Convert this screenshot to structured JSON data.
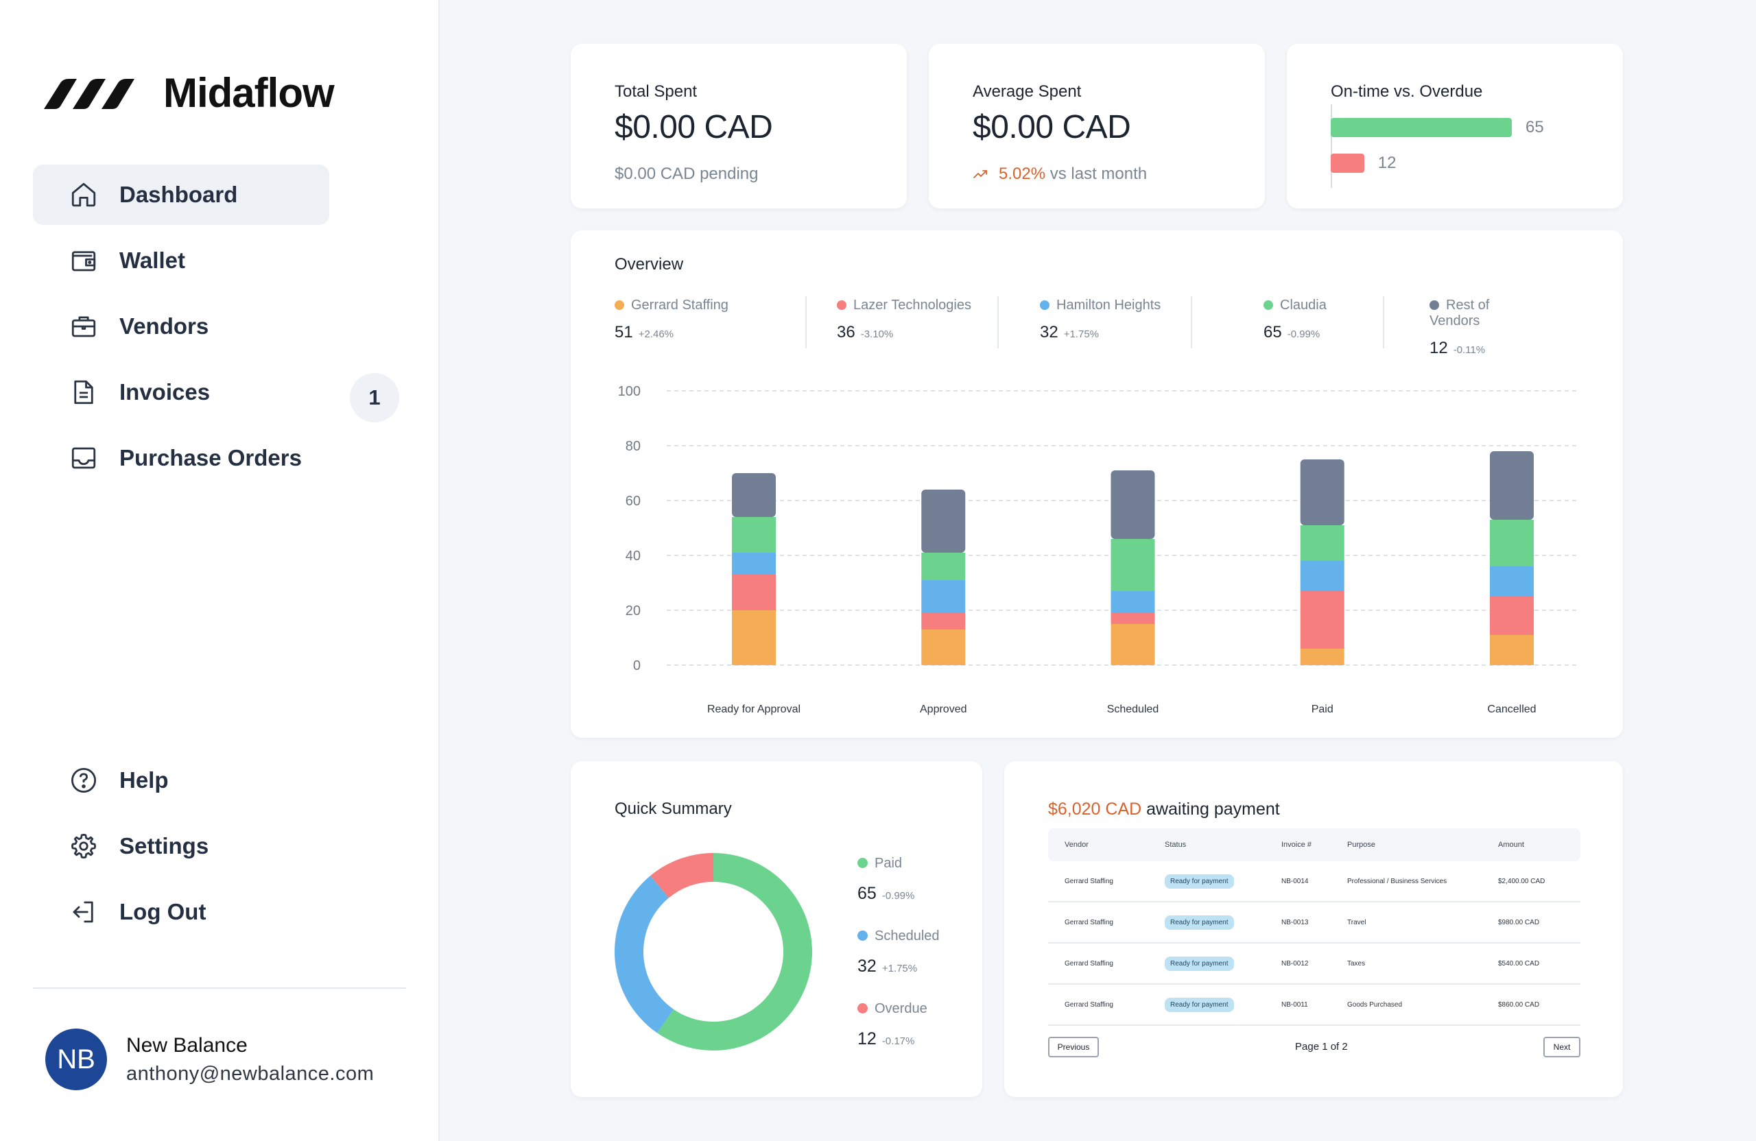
{
  "brand": {
    "name": "Midaflow"
  },
  "nav": {
    "items": [
      {
        "label": "Dashboard",
        "icon": "home-icon",
        "active": true
      },
      {
        "label": "Wallet",
        "icon": "wallet-icon"
      },
      {
        "label": "Vendors",
        "icon": "briefcase-icon"
      },
      {
        "label": "Invoices",
        "icon": "document-icon",
        "badge": "1"
      },
      {
        "label": "Purchase Orders",
        "icon": "inbox-icon"
      }
    ],
    "bottom": [
      {
        "label": "Help",
        "icon": "help-circle-icon"
      },
      {
        "label": "Settings",
        "icon": "gear-icon"
      },
      {
        "label": "Log Out",
        "icon": "logout-icon"
      }
    ]
  },
  "user": {
    "initials": "NB",
    "name": "New Balance",
    "email": "anthony@newbalance.com"
  },
  "stats": {
    "total_spent": {
      "title": "Total Spent",
      "value": "$0.00 CAD",
      "sub": "$0.00 CAD pending"
    },
    "average_spent": {
      "title": "Average Spent",
      "value": "$0.00 CAD",
      "change": "5.02%",
      "change_suffix": " vs last month"
    },
    "ontime": {
      "title": "On-time vs. Overdue",
      "ontime_value": 65,
      "overdue_value": 12,
      "ontime_label": "65",
      "overdue_label": "12"
    }
  },
  "overview": {
    "title": "Overview",
    "legend": [
      {
        "name": "Gerrard Staffing",
        "value": "51",
        "change": "+2.46%",
        "color": "#f5ad55"
      },
      {
        "name": "Lazer Technologies",
        "value": "36",
        "change": "-3.10%",
        "color": "#f77e7e"
      },
      {
        "name": "Hamilton Heights",
        "value": "32",
        "change": "+1.75%",
        "color": "#64b2ec"
      },
      {
        "name": "Claudia",
        "value": "65",
        "change": "-0.99%",
        "color": "#6bd38e"
      },
      {
        "name": "Rest of Vendors",
        "value": "12",
        "change": "-0.11%",
        "color": "#717e93"
      }
    ]
  },
  "chart_data": {
    "type": "bar",
    "stacked": true,
    "categories": [
      "Ready for Approval",
      "Approved",
      "Scheduled",
      "Paid",
      "Cancelled"
    ],
    "ylim": [
      0,
      100
    ],
    "yticks": [
      0,
      20,
      40,
      60,
      80,
      100
    ],
    "grid": true,
    "series": [
      {
        "name": "Gerrard Staffing",
        "color": "#f5ad55",
        "values": [
          20,
          13,
          15,
          6,
          11
        ]
      },
      {
        "name": "Lazer Technologies",
        "color": "#f77e7e",
        "values": [
          13,
          6,
          4,
          21,
          14
        ]
      },
      {
        "name": "Hamilton Heights",
        "color": "#64b2ec",
        "values": [
          8,
          12,
          8,
          11,
          11
        ]
      },
      {
        "name": "Claudia",
        "color": "#6bd38e",
        "values": [
          13,
          10,
          19,
          13,
          17
        ]
      },
      {
        "name": "Rest of Vendors",
        "color": "#717e93",
        "values": [
          16,
          23,
          25,
          24,
          25
        ]
      }
    ]
  },
  "summary": {
    "title": "Quick Summary",
    "donut": [
      {
        "name": "Paid",
        "value": 65,
        "label": "65",
        "change": "-0.99%",
        "color": "#6bd38e"
      },
      {
        "name": "Scheduled",
        "value": 32,
        "label": "32",
        "change": "+1.75%",
        "color": "#64b2ec"
      },
      {
        "name": "Overdue",
        "value": 12,
        "label": "12",
        "change": "-0.17%",
        "color": "#f77e7e"
      }
    ]
  },
  "awaiting": {
    "amount": "$6,020 CAD",
    "suffix": " awaiting payment",
    "columns": [
      "Vendor",
      "Status",
      "Invoice #",
      "Purpose",
      "Amount"
    ],
    "rows": [
      {
        "vendor": "Gerrard Staffing",
        "status": "Ready for payment",
        "invoice": "NB-0014",
        "purpose": "Professional / Business Services",
        "amount": "$2,400.00 CAD"
      },
      {
        "vendor": "Gerrard Staffing",
        "status": "Ready for payment",
        "invoice": "NB-0013",
        "purpose": "Travel",
        "amount": "$980.00 CAD"
      },
      {
        "vendor": "Gerrard Staffing",
        "status": "Ready for payment",
        "invoice": "NB-0012",
        "purpose": "Taxes",
        "amount": "$540.00 CAD"
      },
      {
        "vendor": "Gerrard Staffing",
        "status": "Ready for payment",
        "invoice": "NB-0011",
        "purpose": "Goods Purchased",
        "amount": "$860.00 CAD"
      }
    ],
    "pager": {
      "previous": "Previous",
      "page": "Page 1 of 2",
      "next": "Next"
    }
  }
}
